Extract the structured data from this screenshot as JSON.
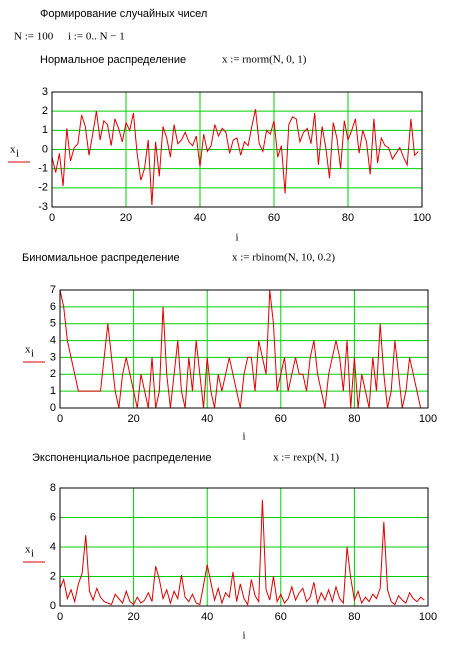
{
  "header": {
    "title": "Формирование случайных чисел",
    "definition_n": "N := 100",
    "definition_i": "i := 0.. N − 1"
  },
  "chart_data": [
    {
      "type": "line",
      "title": "Нормальное распределение",
      "formula": "x := rnorm(N, 0, 1)",
      "xlabel": "i",
      "ylabel": "x",
      "ylabel_subscript": "i",
      "xlim": [
        0,
        100
      ],
      "xticks": [
        0,
        20,
        40,
        60,
        80,
        100
      ],
      "ylim": [
        -3,
        3
      ],
      "yticks": [
        -3,
        -2,
        -1,
        0,
        1,
        2,
        3
      ],
      "grid": true,
      "grid_color": "#00d000",
      "x": [
        0,
        1,
        2,
        3,
        4,
        5,
        6,
        7,
        8,
        9,
        10,
        11,
        12,
        13,
        14,
        15,
        16,
        17,
        18,
        19,
        20,
        21,
        22,
        23,
        24,
        25,
        26,
        27,
        28,
        29,
        30,
        31,
        32,
        33,
        34,
        35,
        36,
        37,
        38,
        39,
        40,
        41,
        42,
        43,
        44,
        45,
        46,
        47,
        48,
        49,
        50,
        51,
        52,
        53,
        54,
        55,
        56,
        57,
        58,
        59,
        60,
        61,
        62,
        63,
        64,
        65,
        66,
        67,
        68,
        69,
        70,
        71,
        72,
        73,
        74,
        75,
        76,
        77,
        78,
        79,
        80,
        81,
        82,
        83,
        84,
        85,
        86,
        87,
        88,
        89,
        90,
        91,
        92,
        93,
        94,
        95,
        96,
        97,
        98,
        99
      ],
      "series": [
        {
          "color": "#e00000",
          "values": [
            -0.4,
            -1.2,
            -0.2,
            -1.9,
            1.1,
            -0.6,
            0.1,
            0.3,
            1.8,
            1.2,
            -0.3,
            0.8,
            2.0,
            0.5,
            1.5,
            1.3,
            0.2,
            1.6,
            1.1,
            0.4,
            1.4,
            1.0,
            1.9,
            -0.2,
            -1.6,
            -1.0,
            0.5,
            -2.9,
            0.4,
            -1.4,
            1.2,
            0.6,
            -0.4,
            1.3,
            0.3,
            0.5,
            0.9,
            0.4,
            0.2,
            0.7,
            -0.9,
            0.8,
            -0.1,
            0.2,
            1.3,
            0.7,
            1.1,
            0.9,
            -0.2,
            0.5,
            0.6,
            -0.3,
            0.4,
            0.2,
            1.2,
            2.1,
            0.3,
            -0.1,
            1.0,
            0.8,
            1.5,
            -0.4,
            0.2,
            -2.3,
            1.3,
            1.7,
            1.6,
            0.4,
            0.9,
            1.1,
            0.3,
            1.9,
            -0.8,
            1.2,
            0.1,
            -1.5,
            1.4,
            0.6,
            -1.0,
            1.5,
            0.5,
            1.0,
            1.6,
            -0.2,
            1.0,
            0.4,
            -1.3,
            1.6,
            -0.7,
            0.6,
            0.2,
            0.1,
            -0.5,
            -0.2,
            0.1,
            -0.4,
            -0.8,
            1.6,
            -0.3,
            -0.1
          ]
        }
      ]
    },
    {
      "type": "line",
      "title": "Биномиальное распределение",
      "formula": "x := rbinom(N, 10, 0.2)",
      "xlabel": "i",
      "ylabel": "x",
      "ylabel_subscript": "i",
      "xlim": [
        0,
        100
      ],
      "xticks": [
        0,
        20,
        40,
        60,
        80,
        100
      ],
      "ylim": [
        0,
        7
      ],
      "yticks": [
        0,
        1,
        2,
        3,
        4,
        5,
        6,
        7
      ],
      "grid": true,
      "grid_color": "#00d000",
      "x": [
        0,
        1,
        2,
        3,
        4,
        5,
        6,
        7,
        8,
        9,
        10,
        11,
        12,
        13,
        14,
        15,
        16,
        17,
        18,
        19,
        20,
        21,
        22,
        23,
        24,
        25,
        26,
        27,
        28,
        29,
        30,
        31,
        32,
        33,
        34,
        35,
        36,
        37,
        38,
        39,
        40,
        41,
        42,
        43,
        44,
        45,
        46,
        47,
        48,
        49,
        50,
        51,
        52,
        53,
        54,
        55,
        56,
        57,
        58,
        59,
        60,
        61,
        62,
        63,
        64,
        65,
        66,
        67,
        68,
        69,
        70,
        71,
        72,
        73,
        74,
        75,
        76,
        77,
        78,
        79,
        80,
        81,
        82,
        83,
        84,
        85,
        86,
        87,
        88,
        89,
        90,
        91,
        92,
        93,
        94,
        95,
        96,
        97,
        98,
        99
      ],
      "series": [
        {
          "color": "#e00000",
          "values": [
            7,
            6,
            4,
            3,
            2,
            1,
            1,
            1,
            1,
            1,
            1,
            1,
            3,
            5,
            3,
            1,
            0,
            2,
            3,
            2,
            1,
            0,
            2,
            1,
            0,
            3,
            0,
            1,
            6,
            2,
            0,
            2,
            4,
            1,
            0,
            3,
            1,
            4,
            2,
            0,
            3,
            1,
            0,
            2,
            1,
            2,
            3,
            2,
            1,
            0,
            2,
            3,
            3,
            1,
            4,
            3,
            2,
            7,
            5,
            1,
            2,
            3,
            1,
            2,
            3,
            2,
            2,
            1,
            3,
            4,
            2,
            1,
            0,
            2,
            3,
            4,
            3,
            1,
            4,
            0,
            3,
            0,
            2,
            1,
            0,
            3,
            1,
            5,
            2,
            0,
            1,
            4,
            2,
            0,
            1,
            3,
            2,
            1,
            0,
            0
          ]
        }
      ]
    },
    {
      "type": "line",
      "title": "Экспоненциальное распределение",
      "formula": "x := rexp(N, 1)",
      "xlabel": "i",
      "ylabel": "x",
      "ylabel_subscript": "i",
      "xlim": [
        0,
        100
      ],
      "xticks": [
        0,
        20,
        40,
        60,
        80,
        100
      ],
      "ylim": [
        0,
        8
      ],
      "yticks": [
        0,
        2,
        4,
        6,
        8
      ],
      "grid": true,
      "grid_color": "#00d000",
      "x": [
        0,
        1,
        2,
        3,
        4,
        5,
        6,
        7,
        8,
        9,
        10,
        11,
        12,
        13,
        14,
        15,
        16,
        17,
        18,
        19,
        20,
        21,
        22,
        23,
        24,
        25,
        26,
        27,
        28,
        29,
        30,
        31,
        32,
        33,
        34,
        35,
        36,
        37,
        38,
        39,
        40,
        41,
        42,
        43,
        44,
        45,
        46,
        47,
        48,
        49,
        50,
        51,
        52,
        53,
        54,
        55,
        56,
        57,
        58,
        59,
        60,
        61,
        62,
        63,
        64,
        65,
        66,
        67,
        68,
        69,
        70,
        71,
        72,
        73,
        74,
        75,
        76,
        77,
        78,
        79,
        80,
        81,
        82,
        83,
        84,
        85,
        86,
        87,
        88,
        89,
        90,
        91,
        92,
        93,
        94,
        95,
        96,
        97,
        98,
        99
      ],
      "series": [
        {
          "color": "#e00000",
          "values": [
            1.2,
            1.8,
            0.5,
            1.1,
            0.3,
            1.5,
            2.2,
            4.8,
            1.0,
            0.4,
            1.2,
            0.6,
            0.3,
            0.2,
            0.1,
            0.8,
            0.5,
            0.2,
            1.0,
            0.3,
            0.1,
            0.6,
            0.2,
            0.4,
            0.9,
            0.3,
            2.7,
            1.8,
            0.5,
            1.1,
            0.2,
            1.0,
            0.5,
            2.1,
            0.6,
            0.3,
            0.8,
            0.2,
            0.1,
            1.4,
            2.8,
            1.6,
            0.4,
            1.2,
            0.2,
            0.9,
            0.6,
            2.3,
            0.3,
            1.5,
            0.5,
            0.1,
            1.8,
            0.7,
            0.3,
            7.2,
            1.1,
            0.4,
            2.0,
            0.3,
            0.8,
            0.2,
            0.5,
            1.3,
            0.4,
            0.9,
            1.2,
            0.3,
            0.6,
            1.6,
            0.2,
            0.9,
            0.4,
            1.1,
            0.3,
            1.3,
            0.5,
            0.2,
            4.0,
            1.9,
            0.4,
            1.0,
            0.2,
            0.6,
            0.3,
            0.8,
            0.5,
            1.2,
            5.7,
            1.1,
            0.3,
            0.1,
            0.7,
            0.4,
            0.2,
            0.9,
            0.5,
            0.3,
            0.6,
            0.4
          ]
        }
      ]
    }
  ]
}
